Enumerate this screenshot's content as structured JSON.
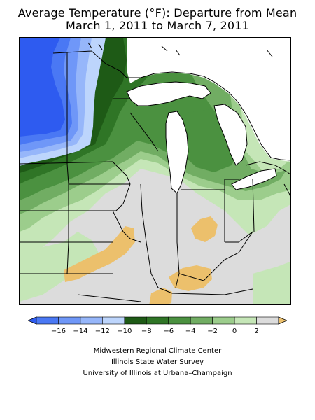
{
  "title": {
    "line1": "Average Temperature (°F): Departure from Mean",
    "line2": "March 1, 2011 to March 7, 2011"
  },
  "legend": {
    "bins": [
      {
        "color": "#2e5bf0"
      },
      {
        "color": "#4a78f4"
      },
      {
        "color": "#6f97f8"
      },
      {
        "color": "#96b6fa"
      },
      {
        "color": "#bdd5fc"
      },
      {
        "color": "#1e5a16"
      },
      {
        "color": "#2f7526"
      },
      {
        "color": "#4b9140"
      },
      {
        "color": "#71ad63"
      },
      {
        "color": "#9ccd8c"
      },
      {
        "color": "#c5e6b7"
      },
      {
        "color": "#dcdcdc"
      },
      {
        "color": "#ecc06c"
      }
    ],
    "tick_labels": [
      "−16",
      "−14",
      "−12",
      "−10",
      "−8",
      "−6",
      "−4",
      "−2",
      "0",
      "2"
    ],
    "tick_values": [
      -16,
      -14,
      -12,
      -10,
      -8,
      -6,
      -4,
      -2,
      0,
      2
    ],
    "range": [
      -17,
      3
    ]
  },
  "credits": {
    "line1": "Midwestern Regional Climate Center",
    "line2": "Illinois State Water Survey",
    "line3": "University of Illinois at Urbana–Champaign"
  },
  "colors": {
    "very_cold": "#2e5bf0",
    "cold_blue": "#6f97f8",
    "dark_green": "#1e5a16",
    "mid_green": "#71ad63",
    "light_green": "#c5e6b7",
    "near_normal": "#dcdcdc",
    "warm": "#ecc06c",
    "lake_water": "#ffffff"
  }
}
